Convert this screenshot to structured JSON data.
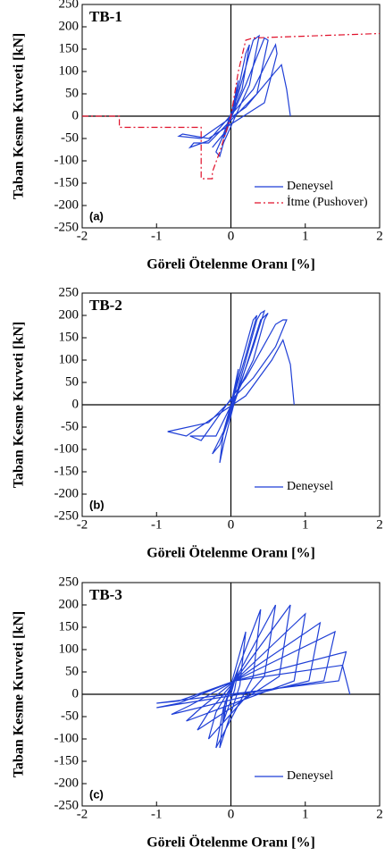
{
  "chart_data": [
    {
      "type": "line",
      "title": "TB-1",
      "panel_label": "(a)",
      "xlabel": "Göreli Ötelenme Oranı [%]",
      "ylabel": "Taban Kesme Kuvveti [kN]",
      "xlim": [
        -2,
        2
      ],
      "ylim": [
        -250,
        250
      ],
      "xticks": [
        -2,
        -1,
        0,
        1,
        2
      ],
      "yticks": [
        250,
        200,
        150,
        100,
        50,
        0,
        -50,
        -100,
        -150,
        -200,
        -250
      ],
      "legend": "lower right",
      "series": [
        {
          "name": "Deneysel",
          "color": "#1f3fd6",
          "dash": "solid",
          "x": [
            0,
            0.05,
            0.1,
            0.05,
            -0.05,
            -0.1,
            -0.02,
            0.1,
            0.2,
            0.25,
            0.15,
            -0.1,
            -0.2,
            -0.25,
            -0.1,
            0.1,
            0.3,
            0.38,
            0.25,
            -0.1,
            -0.15,
            -0.2,
            0.2,
            0.45,
            0.5,
            0.35,
            -0.3,
            -0.5,
            -0.55,
            -0.3,
            0.3,
            0.6,
            0.62,
            0.45,
            -0.3,
            -0.65,
            -0.7,
            -0.4,
            0.2,
            0.6,
            0.68,
            0.75,
            0.8
          ],
          "y": [
            0,
            40,
            80,
            20,
            -30,
            -50,
            -10,
            60,
            140,
            160,
            60,
            -40,
            -60,
            -70,
            -40,
            50,
            170,
            180,
            70,
            -60,
            -90,
            -80,
            70,
            175,
            170,
            50,
            -60,
            -60,
            -70,
            -55,
            60,
            160,
            140,
            30,
            -50,
            -40,
            -45,
            -50,
            20,
            100,
            115,
            60,
            0
          ]
        },
        {
          "name": "İtme (Pushover)",
          "color": "#e0102a",
          "dash": "dashdot",
          "x": [
            -2,
            -1.5,
            -1.5,
            -0.4,
            -0.4,
            -0.25,
            -0.25,
            -0.15,
            0,
            0.1,
            0.2,
            0.3,
            2
          ],
          "y": [
            0,
            0,
            -25,
            -25,
            -140,
            -140,
            -125,
            -80,
            0,
            100,
            170,
            175,
            185
          ]
        }
      ]
    },
    {
      "type": "line",
      "title": "TB-2",
      "panel_label": "(b)",
      "xlabel": "Göreli Ötelenme Oranı [%]",
      "ylabel": "Taban Kesme Kuvveti [kN]",
      "xlim": [
        -2,
        2
      ],
      "ylim": [
        -250,
        250
      ],
      "xticks": [
        -2,
        -1,
        0,
        1,
        2
      ],
      "yticks": [
        250,
        200,
        150,
        100,
        50,
        0,
        -50,
        -100,
        -150,
        -200,
        -250
      ],
      "legend": "lower right",
      "series": [
        {
          "name": "Deneysel",
          "color": "#1f3fd6",
          "dash": "solid",
          "x": [
            0,
            0.05,
            0.1,
            0.05,
            -0.05,
            -0.1,
            0,
            0.15,
            0.3,
            0.35,
            0.2,
            -0.1,
            -0.15,
            -0.1,
            0.1,
            0.35,
            0.4,
            0.45,
            0.3,
            -0.1,
            -0.25,
            -0.15,
            0.1,
            0.4,
            0.5,
            0.45,
            0.3,
            -0.2,
            -0.55,
            -0.4,
            0.2,
            0.6,
            0.7,
            0.75,
            0.6,
            0.3,
            -0.3,
            -0.85,
            -0.6,
            0.2,
            0.55,
            0.7,
            0.8,
            0.85
          ],
          "y": [
            0,
            40,
            80,
            30,
            -30,
            -60,
            -10,
            100,
            190,
            200,
            110,
            -60,
            -130,
            -90,
            40,
            190,
            205,
            210,
            130,
            -60,
            -110,
            -90,
            30,
            190,
            205,
            190,
            100,
            -70,
            -70,
            -80,
            60,
            180,
            190,
            190,
            130,
            60,
            -40,
            -60,
            -70,
            20,
            100,
            145,
            90,
            0
          ]
        }
      ]
    },
    {
      "type": "line",
      "title": "TB-3",
      "panel_label": "(c)",
      "xlabel": "Göreli Ötelenme Oranı [%]",
      "ylabel": "Taban Kesme Kuvveti [kN]",
      "xlim": [
        -2,
        2
      ],
      "ylim": [
        -250,
        250
      ],
      "xticks": [
        -2,
        -1,
        0,
        1,
        2
      ],
      "yticks": [
        250,
        200,
        150,
        100,
        50,
        0,
        -50,
        -100,
        -150,
        -200,
        -250
      ],
      "legend": "lower right",
      "series": [
        {
          "name": "Deneysel",
          "color": "#1f3fd6",
          "dash": "solid",
          "x": [
            0,
            0.1,
            0.05,
            -0.1,
            -0.05,
            0.2,
            0.12,
            -0.15,
            -0.08,
            0.4,
            0.3,
            -0.2,
            -0.1,
            0.05,
            0.6,
            0.45,
            -0.3,
            -0.2,
            0.05,
            0.8,
            0.65,
            -0.45,
            -0.3,
            0.05,
            1.0,
            0.85,
            -0.6,
            -0.4,
            0.05,
            1.2,
            1.05,
            -0.8,
            -0.55,
            0.05,
            1.4,
            1.25,
            -1.0,
            -0.7,
            0.05,
            1.55,
            1.45,
            -1.0,
            -0.7,
            0.05,
            1.5,
            1.6
          ],
          "y": [
            0,
            60,
            10,
            -60,
            -10,
            140,
            20,
            -120,
            -20,
            190,
            40,
            -120,
            -30,
            30,
            200,
            40,
            -100,
            -40,
            30,
            200,
            40,
            -80,
            -40,
            30,
            180,
            30,
            -60,
            -30,
            30,
            160,
            30,
            -45,
            -25,
            30,
            140,
            30,
            -30,
            -20,
            30,
            95,
            30,
            -20,
            -15,
            30,
            65,
            0
          ]
        }
      ]
    }
  ]
}
